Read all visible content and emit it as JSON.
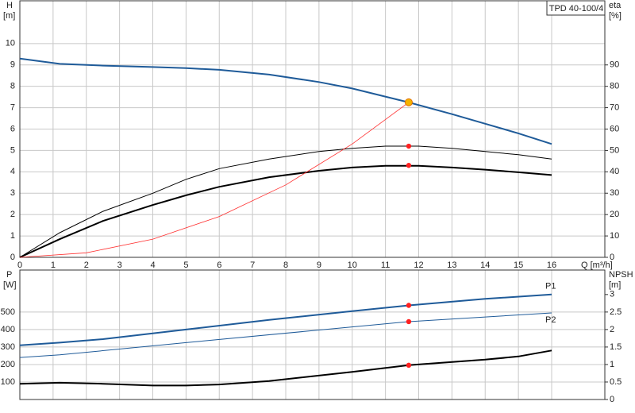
{
  "chart_data": [
    {
      "type": "line",
      "title": "TPD 40-100/4",
      "ylabel": "H",
      "yunit": "[m]",
      "y2label": "eta",
      "y2unit": "[%]",
      "xlabel": "Q [m³/h]",
      "xlim": [
        0,
        17.6
      ],
      "xticks": [
        0,
        1,
        2,
        3,
        4,
        5,
        6,
        7,
        8,
        9,
        10,
        11,
        12,
        13,
        14,
        15,
        16
      ],
      "ylim": [
        0,
        12
      ],
      "yticks": [
        0,
        1,
        2,
        3,
        4,
        5,
        6,
        7,
        8,
        9,
        10
      ],
      "y2lim": [
        0,
        120
      ],
      "y2ticks": [
        0,
        10,
        20,
        30,
        40,
        50,
        60,
        70,
        80,
        90
      ],
      "grid": true,
      "series": [
        {
          "color": "#1f5b99",
          "width": 2,
          "x": [
            0,
            1.2,
            2.5,
            4,
            5,
            6,
            7.5,
            9,
            10,
            11.7,
            13,
            14,
            15,
            16
          ],
          "values": [
            9.3,
            9.05,
            8.97,
            8.9,
            8.85,
            8.77,
            8.55,
            8.2,
            7.9,
            7.25,
            6.7,
            6.25,
            5.8,
            5.3
          ]
        },
        {
          "color": "#000000",
          "width": 1,
          "axis": "y2",
          "x": [
            0,
            1.2,
            2.5,
            4,
            5,
            6,
            7.5,
            9,
            10,
            11,
            12,
            13,
            14,
            15,
            16
          ],
          "values": [
            0,
            11.5,
            21.5,
            30,
            36.5,
            41.5,
            46,
            49.5,
            51,
            52,
            52,
            51,
            49.5,
            48,
            46
          ]
        },
        {
          "color": "#000000",
          "width": 2,
          "axis": "y2",
          "x": [
            0,
            1.2,
            2.5,
            4,
            5,
            6,
            7.5,
            9,
            10,
            11,
            12,
            13,
            14,
            15,
            16
          ],
          "values": [
            0,
            8.5,
            17,
            24.5,
            29,
            33,
            37.5,
            40.5,
            42,
            42.8,
            42.8,
            42,
            41,
            39.8,
            38.5
          ]
        },
        {
          "color": "#ff3030",
          "width": 0.8,
          "x": [
            0,
            2,
            4,
            6,
            8,
            10,
            11.7
          ],
          "values": [
            0,
            0.21,
            0.85,
            1.91,
            3.39,
            5.3,
            7.25
          ]
        },
        {
          "color": "#f5b400",
          "marker": true,
          "x": [
            11.7
          ],
          "values": [
            7.25
          ]
        },
        {
          "color": "#ff2020",
          "marker": true,
          "axis": "y2",
          "x": [
            11.7
          ],
          "values": [
            52
          ]
        },
        {
          "color": "#ff2020",
          "marker": true,
          "axis": "y2",
          "x": [
            11.7
          ],
          "values": [
            43
          ]
        }
      ]
    },
    {
      "type": "line",
      "ylabel": "P",
      "yunit": "[W]",
      "y2label": "NPSH",
      "y2unit": "[m]",
      "xlim": [
        0,
        17.6
      ],
      "ylim": [
        0,
        740
      ],
      "yticks": [
        100,
        200,
        300,
        400,
        500
      ],
      "y2lim": [
        0,
        3.7
      ],
      "y2ticks": [
        0,
        0.5,
        1,
        1.5,
        2,
        2.5,
        3
      ],
      "grid": true,
      "series": [
        {
          "name": "P1",
          "color": "#1f5b99",
          "width": 2,
          "x": [
            0,
            1.2,
            2.5,
            5,
            7.5,
            10,
            11.7,
            14,
            16
          ],
          "values": [
            310,
            325,
            345,
            400,
            455,
            505,
            538,
            575,
            600
          ]
        },
        {
          "name": "P2",
          "color": "#1f5b99",
          "width": 1,
          "x": [
            0,
            1.2,
            5,
            10,
            11.7,
            16
          ],
          "values": [
            240,
            255,
            325,
            415,
            445,
            495
          ]
        },
        {
          "color": "#000000",
          "width": 2,
          "axis": "y2",
          "x": [
            0,
            1.2,
            2.5,
            4,
            5,
            6,
            7.5,
            10,
            11.7,
            14,
            15,
            16
          ],
          "values": [
            0.45,
            0.48,
            0.45,
            0.4,
            0.4,
            0.43,
            0.53,
            0.79,
            0.98,
            1.14,
            1.23,
            1.4
          ]
        },
        {
          "color": "#ff2020",
          "marker": true,
          "x": [
            11.7
          ],
          "values": [
            538
          ]
        },
        {
          "color": "#ff2020",
          "marker": true,
          "x": [
            11.7
          ],
          "values": [
            445
          ]
        },
        {
          "color": "#ff2020",
          "marker": true,
          "axis": "y2",
          "x": [
            11.7
          ],
          "values": [
            0.98
          ]
        }
      ]
    }
  ]
}
